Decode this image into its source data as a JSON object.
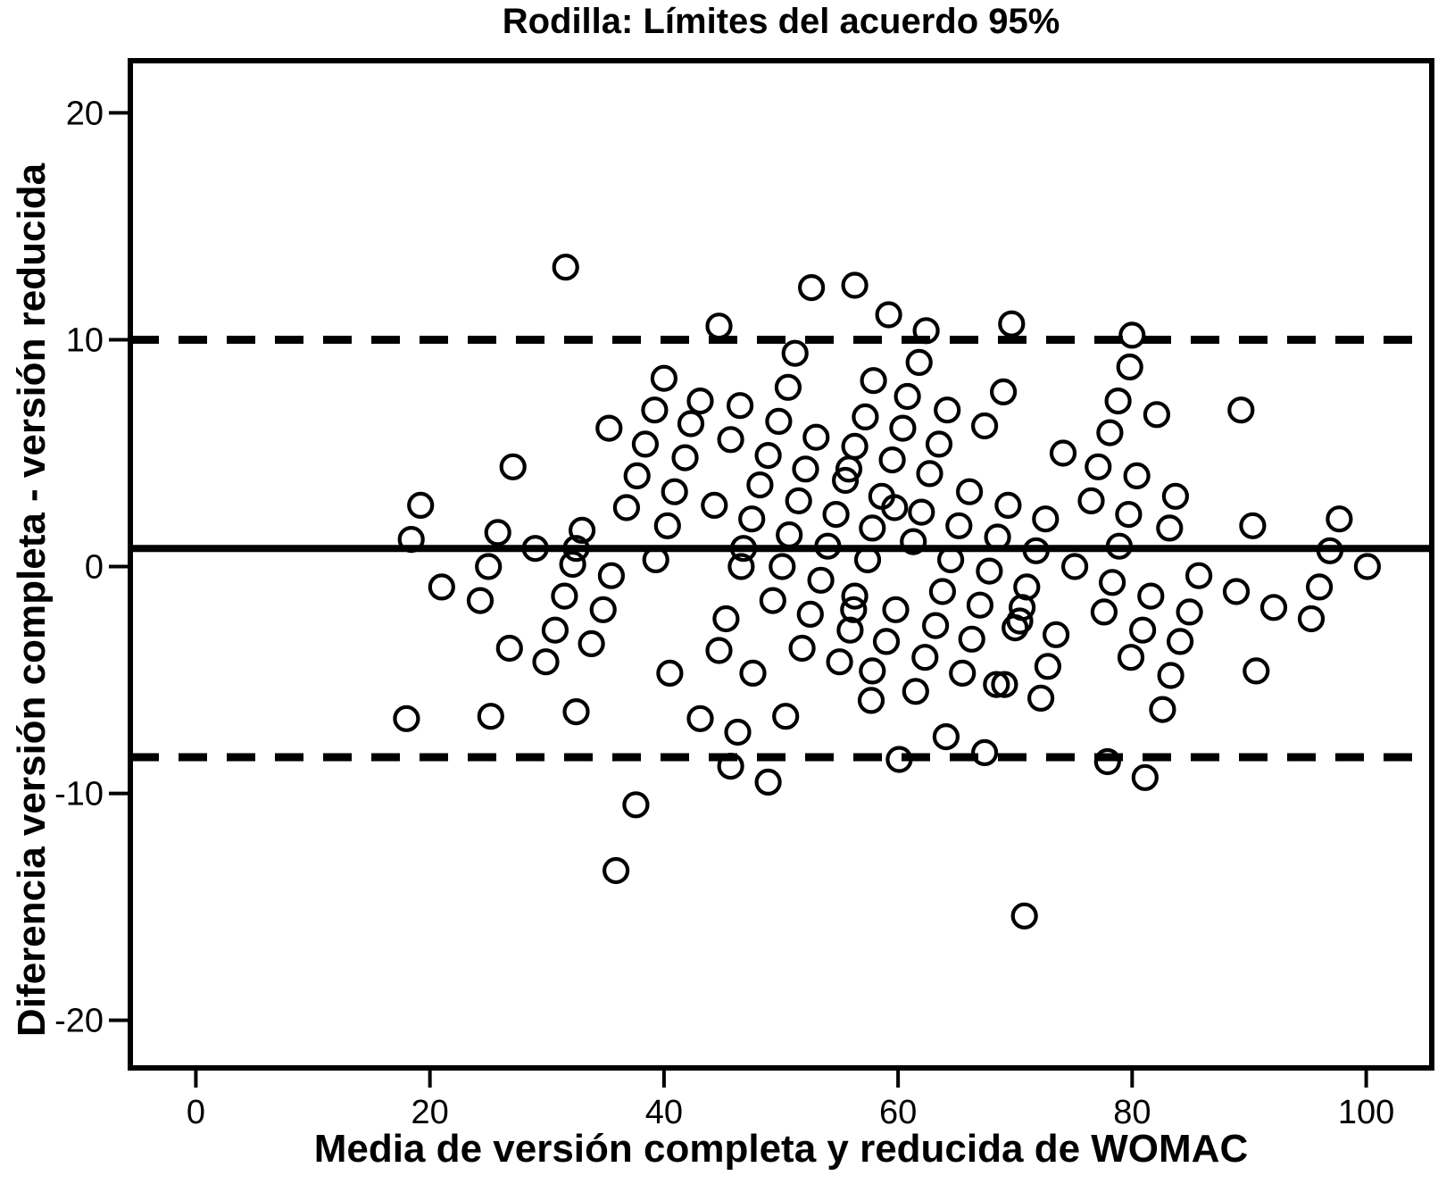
{
  "title": "Rodilla: Límites del acuerdo 95%",
  "colors": {
    "foreground": "#000000",
    "background": "#ffffff"
  },
  "chart_data": {
    "type": "scatter",
    "title": "Rodilla: Límites del acuerdo 95%",
    "xlabel": "Media de versión completa y reducida de WOMAC",
    "ylabel": "Diferencia versión completa - versión reducida",
    "xlim": [
      -5.6,
      105.6
    ],
    "ylim": [
      -22.1,
      22.3
    ],
    "x_ticks": [
      0,
      20,
      40,
      60,
      80,
      100
    ],
    "y_ticks": [
      20,
      10,
      0,
      -10,
      -20
    ],
    "grid": false,
    "legend": "none",
    "marker": "open-circle",
    "reference_lines": {
      "mean": 0.8,
      "mean_style": "solid",
      "upper_loa": 10.0,
      "lower_loa": -8.4,
      "loa_style": "dashed"
    },
    "points": [
      [
        31.6,
        13.2
      ],
      [
        35.3,
        6.1
      ],
      [
        27.1,
        4.4
      ],
      [
        19.2,
        2.7
      ],
      [
        18.4,
        1.2
      ],
      [
        25.8,
        1.5
      ],
      [
        29.0,
        0.8
      ],
      [
        33.0,
        1.6
      ],
      [
        32.5,
        0.8
      ],
      [
        32.2,
        0.1
      ],
      [
        25.0,
        0.0
      ],
      [
        35.5,
        -0.4
      ],
      [
        21.0,
        -0.9
      ],
      [
        24.3,
        -1.5
      ],
      [
        31.5,
        -1.3
      ],
      [
        34.8,
        -1.9
      ],
      [
        30.7,
        -2.8
      ],
      [
        33.8,
        -3.4
      ],
      [
        26.8,
        -3.6
      ],
      [
        29.9,
        -4.2
      ],
      [
        18.0,
        -6.7
      ],
      [
        25.2,
        -6.6
      ],
      [
        32.5,
        -6.4
      ],
      [
        35.9,
        -13.4
      ],
      [
        36.8,
        2.6
      ],
      [
        52.6,
        12.3
      ],
      [
        56.3,
        12.4
      ],
      [
        44.7,
        10.6
      ],
      [
        51.2,
        9.4
      ],
      [
        40.0,
        8.3
      ],
      [
        50.6,
        7.9
      ],
      [
        57.9,
        8.2
      ],
      [
        43.1,
        7.3
      ],
      [
        46.5,
        7.1
      ],
      [
        39.2,
        6.9
      ],
      [
        57.2,
        6.6
      ],
      [
        42.3,
        6.3
      ],
      [
        49.8,
        6.4
      ],
      [
        53.0,
        5.7
      ],
      [
        38.4,
        5.4
      ],
      [
        45.7,
        5.6
      ],
      [
        48.9,
        4.9
      ],
      [
        56.3,
        5.3
      ],
      [
        41.8,
        4.8
      ],
      [
        52.1,
        4.3
      ],
      [
        37.7,
        4.0
      ],
      [
        40.9,
        3.3
      ],
      [
        48.2,
        3.6
      ],
      [
        55.8,
        4.3
      ],
      [
        55.5,
        3.8
      ],
      [
        44.3,
        2.7
      ],
      [
        51.5,
        2.9
      ],
      [
        47.5,
        2.1
      ],
      [
        40.3,
        1.8
      ],
      [
        54.7,
        2.3
      ],
      [
        50.7,
        1.4
      ],
      [
        54.0,
        0.9
      ],
      [
        46.8,
        0.8
      ],
      [
        46.6,
        0.0
      ],
      [
        39.3,
        0.3
      ],
      [
        50.1,
        0.0
      ],
      [
        53.4,
        -0.6
      ],
      [
        49.3,
        -1.5
      ],
      [
        56.3,
        -1.3
      ],
      [
        56.2,
        -1.9
      ],
      [
        52.5,
        -2.1
      ],
      [
        45.3,
        -2.3
      ],
      [
        55.9,
        -2.8
      ],
      [
        44.7,
        -3.7
      ],
      [
        51.8,
        -3.6
      ],
      [
        55.0,
        -4.2
      ],
      [
        40.5,
        -4.7
      ],
      [
        47.6,
        -4.7
      ],
      [
        57.8,
        -4.6
      ],
      [
        43.1,
        -6.7
      ],
      [
        50.4,
        -6.6
      ],
      [
        46.3,
        -7.3
      ],
      [
        45.7,
        -8.8
      ],
      [
        48.9,
        -9.5
      ],
      [
        37.6,
        -10.5
      ],
      [
        59.2,
        11.1
      ],
      [
        62.4,
        10.4
      ],
      [
        69.7,
        10.7
      ],
      [
        80.0,
        10.2
      ],
      [
        61.8,
        9.0
      ],
      [
        79.8,
        8.8
      ],
      [
        60.8,
        7.5
      ],
      [
        69.0,
        7.7
      ],
      [
        78.8,
        7.3
      ],
      [
        64.2,
        6.9
      ],
      [
        67.4,
        6.2
      ],
      [
        60.4,
        6.1
      ],
      [
        78.1,
        5.9
      ],
      [
        63.5,
        5.4
      ],
      [
        74.1,
        5.0
      ],
      [
        77.1,
        4.4
      ],
      [
        59.5,
        4.7
      ],
      [
        62.7,
        4.1
      ],
      [
        58.6,
        3.1
      ],
      [
        59.7,
        2.6
      ],
      [
        62.0,
        2.4
      ],
      [
        66.1,
        3.3
      ],
      [
        69.4,
        2.7
      ],
      [
        65.2,
        1.8
      ],
      [
        72.6,
        2.1
      ],
      [
        76.5,
        2.9
      ],
      [
        79.7,
        2.3
      ],
      [
        57.8,
        1.7
      ],
      [
        68.5,
        1.3
      ],
      [
        61.3,
        1.1
      ],
      [
        71.8,
        0.7
      ],
      [
        78.9,
        0.9
      ],
      [
        64.5,
        0.3
      ],
      [
        57.4,
        0.3
      ],
      [
        67.8,
        -0.2
      ],
      [
        75.1,
        0.0
      ],
      [
        78.3,
        -0.7
      ],
      [
        71.0,
        -0.9
      ],
      [
        63.8,
        -1.1
      ],
      [
        67.0,
        -1.7
      ],
      [
        70.6,
        -1.8
      ],
      [
        59.8,
        -1.9
      ],
      [
        70.4,
        -2.4
      ],
      [
        63.2,
        -2.6
      ],
      [
        70.0,
        -2.7
      ],
      [
        73.5,
        -3.0
      ],
      [
        77.6,
        -2.0
      ],
      [
        59.0,
        -3.3
      ],
      [
        66.3,
        -3.2
      ],
      [
        62.3,
        -4.0
      ],
      [
        72.8,
        -4.4
      ],
      [
        79.9,
        -4.0
      ],
      [
        65.5,
        -4.7
      ],
      [
        68.4,
        -5.2
      ],
      [
        69.1,
        -5.2
      ],
      [
        61.5,
        -5.5
      ],
      [
        72.2,
        -5.8
      ],
      [
        57.7,
        -5.9
      ],
      [
        60.1,
        -8.5
      ],
      [
        64.1,
        -7.5
      ],
      [
        67.4,
        -8.2
      ],
      [
        77.9,
        -8.6
      ],
      [
        70.8,
        -15.4
      ],
      [
        82.1,
        6.7
      ],
      [
        89.3,
        6.9
      ],
      [
        80.4,
        4.0
      ],
      [
        83.7,
        3.1
      ],
      [
        83.2,
        1.7
      ],
      [
        90.3,
        1.8
      ],
      [
        97.7,
        2.1
      ],
      [
        96.9,
        0.7
      ],
      [
        100.1,
        0.0
      ],
      [
        85.7,
        -0.4
      ],
      [
        96.0,
        -0.9
      ],
      [
        88.9,
        -1.1
      ],
      [
        81.6,
        -1.3
      ],
      [
        92.1,
        -1.8
      ],
      [
        84.9,
        -2.0
      ],
      [
        95.3,
        -2.3
      ],
      [
        80.9,
        -2.8
      ],
      [
        84.1,
        -3.3
      ],
      [
        83.3,
        -4.8
      ],
      [
        90.6,
        -4.6
      ],
      [
        82.6,
        -6.3
      ],
      [
        81.1,
        -9.3
      ]
    ]
  }
}
